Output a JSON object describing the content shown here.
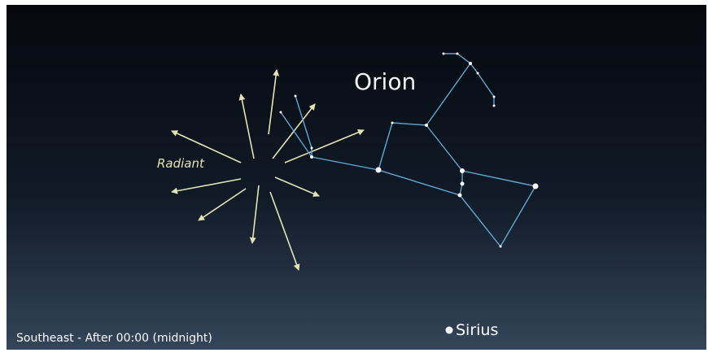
{
  "labels": {
    "constellation": "Orion",
    "radiant": "Radiant",
    "star": "Sirius",
    "caption": "Southeast - After 00:00 (midnight)"
  }
}
